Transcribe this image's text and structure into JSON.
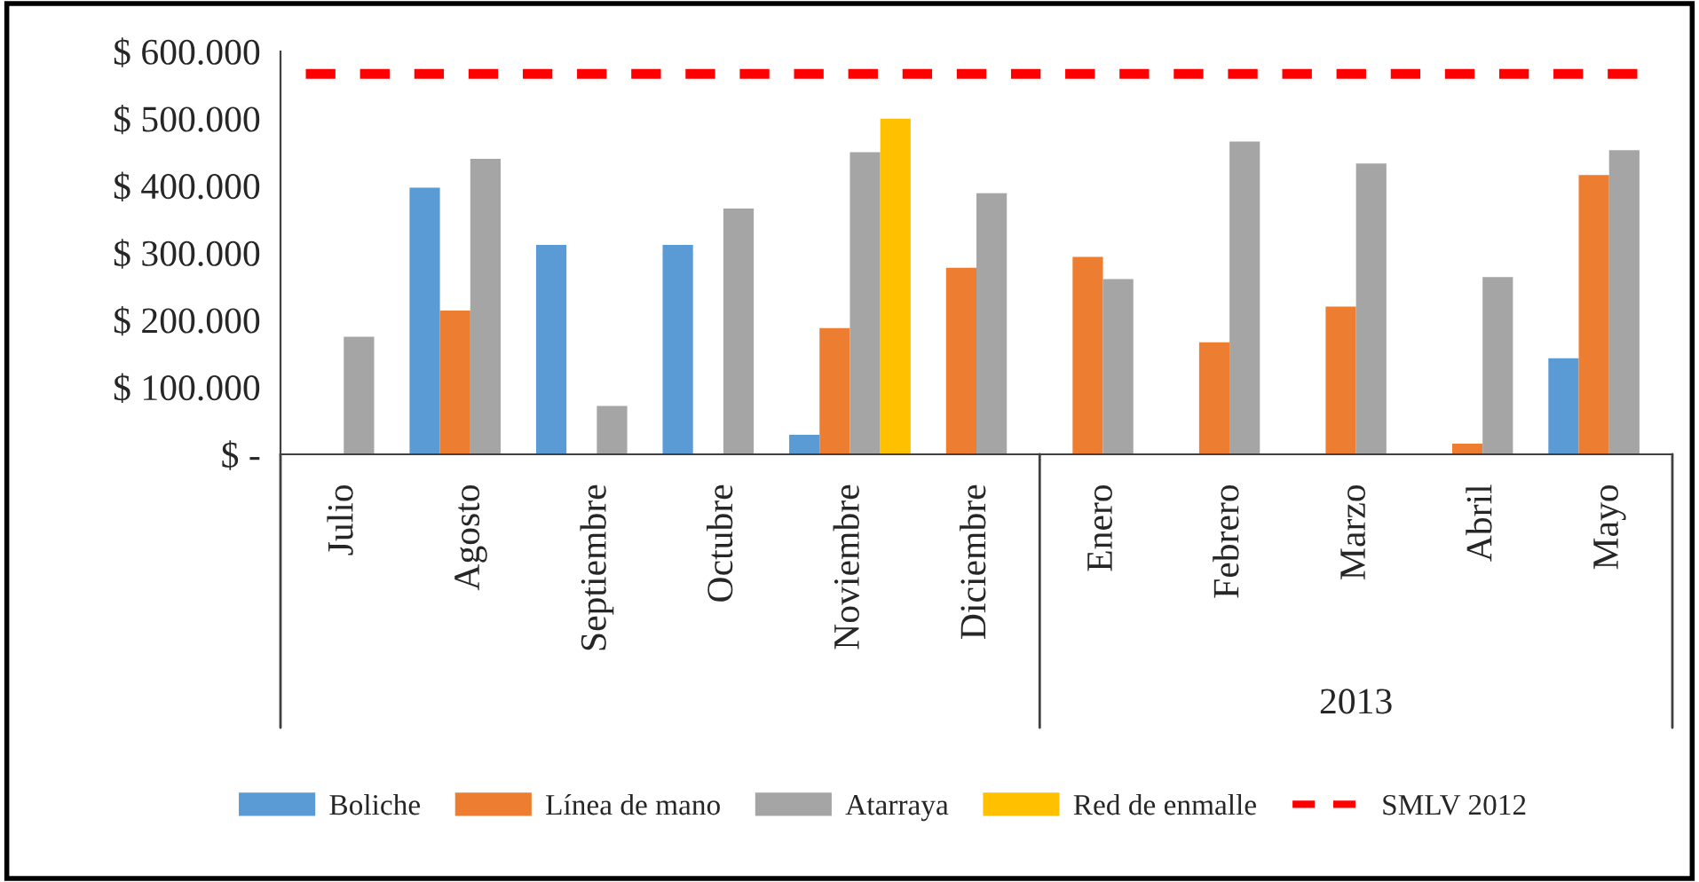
{
  "chart_data": {
    "type": "bar",
    "categories": [
      "Julio",
      "Agosto",
      "Septiembre",
      "Octubre",
      "Noviembre",
      "Diciembre",
      "Enero",
      "Febrero",
      "Marzo",
      "Abril",
      "Mayo"
    ],
    "series": [
      {
        "name": "Boliche",
        "color": "#5b9bd5",
        "values": [
          null,
          397000,
          312000,
          312000,
          29000,
          null,
          null,
          null,
          null,
          null,
          143000
        ]
      },
      {
        "name": "Línea de mano",
        "color": "#ed7d31",
        "values": [
          null,
          214000,
          null,
          null,
          188000,
          278000,
          294000,
          167000,
          220000,
          16000,
          416000
        ]
      },
      {
        "name": "Atarraya",
        "color": "#a5a5a5",
        "values": [
          175000,
          440000,
          72000,
          366000,
          450000,
          389000,
          261000,
          466000,
          433000,
          264000,
          453000
        ]
      },
      {
        "name": "Red de enmalle",
        "color": "#ffc000",
        "values": [
          null,
          null,
          null,
          null,
          500000,
          null,
          null,
          null,
          null,
          null,
          null
        ]
      }
    ],
    "ref_lines": [
      {
        "axis": "y",
        "value": 566700,
        "label": "SMLV 2012",
        "color": "#ff0000",
        "line_style": "dashed"
      }
    ],
    "ylim": [
      0,
      600000
    ],
    "yticks": [
      {
        "value": 0,
        "label": "$ -"
      },
      {
        "value": 100000,
        "label": "$ 100.000"
      },
      {
        "value": 200000,
        "label": "$ 200.000"
      },
      {
        "value": 300000,
        "label": "$ 300.000"
      },
      {
        "value": 400000,
        "label": "$ 400.000"
      },
      {
        "value": 500000,
        "label": "$ 500.000"
      },
      {
        "value": 600000,
        "label": "$ 600.000"
      }
    ],
    "annotations": [
      "2013"
    ],
    "grid": false,
    "legend": "bottom"
  }
}
